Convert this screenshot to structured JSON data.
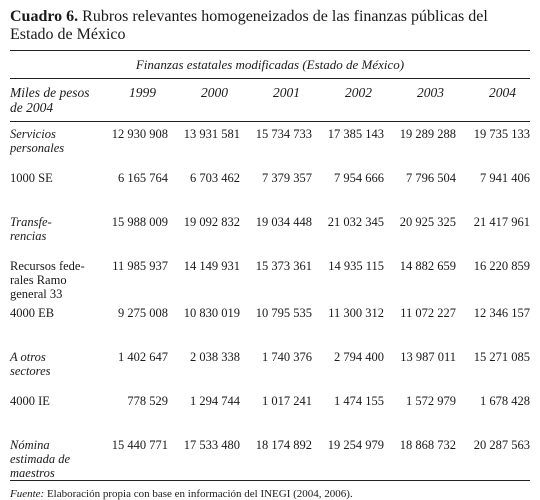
{
  "header": {
    "label": "Cuadro 6.",
    "title": "Rubros relevantes homogeneizados de las finanzas públicas del Estado de México"
  },
  "table": {
    "caption": "Finanzas estatales modificadas (Estado de México)",
    "stub_header": "Miles de pesos de 2004",
    "columns": [
      "1999",
      "2000",
      "2001",
      "2002",
      "2003",
      "2004"
    ],
    "rows": [
      {
        "label": "Servicios\npersonales",
        "italic": true,
        "values": [
          "12 930 908",
          "13 931 581",
          "15 734 733",
          "17 385 143",
          "19 289 288",
          "19 735 133"
        ]
      },
      {
        "label": "1000 SE",
        "italic": false,
        "values": [
          "6 165 764",
          "6 703 462",
          "7 379 357",
          "7 954 666",
          "7 796 504",
          "7 941 406"
        ]
      },
      {
        "label": "Transfe-\nrencias",
        "italic": true,
        "values": [
          "15 988 009",
          "19 092 832",
          "19 034 448",
          "21 032 345",
          "20 925 325",
          "21 417 961"
        ]
      },
      {
        "label": "Recursos fede-\nrales Ramo\ngeneral 33",
        "italic": false,
        "values": [
          "11 985 937",
          "14 149 931",
          "15 373 361",
          "14 935 115",
          "14 882 659",
          "16 220 859"
        ]
      },
      {
        "label": "4000 EB",
        "italic": false,
        "values": [
          "9 275 008",
          "10 830 019",
          "10 795 535",
          "11 300 312",
          "11 072 227",
          "12 346 157"
        ]
      },
      {
        "label": "A otros\nsectores",
        "italic": true,
        "values": [
          "1 402 647",
          "2 038 338",
          "1 740 376",
          "2 794 400",
          "13 987 011",
          "15 271 085"
        ]
      },
      {
        "label": "4000 IE",
        "italic": false,
        "values": [
          "778 529",
          "1 294 744",
          "1 017 241",
          "1 474 155",
          "1 572 979",
          "1 678 428"
        ]
      },
      {
        "label": "Nómina\nestimada de\nmaestros",
        "italic": true,
        "values": [
          "15 440 771",
          "17 533 480",
          "18 174 892",
          "19 254 979",
          "18 868 732",
          "20 287 563"
        ]
      }
    ]
  },
  "footer": {
    "source_label": "Fuente:",
    "source_text": "Elaboración propia con base en información del INEGI (2004, 2006)."
  }
}
